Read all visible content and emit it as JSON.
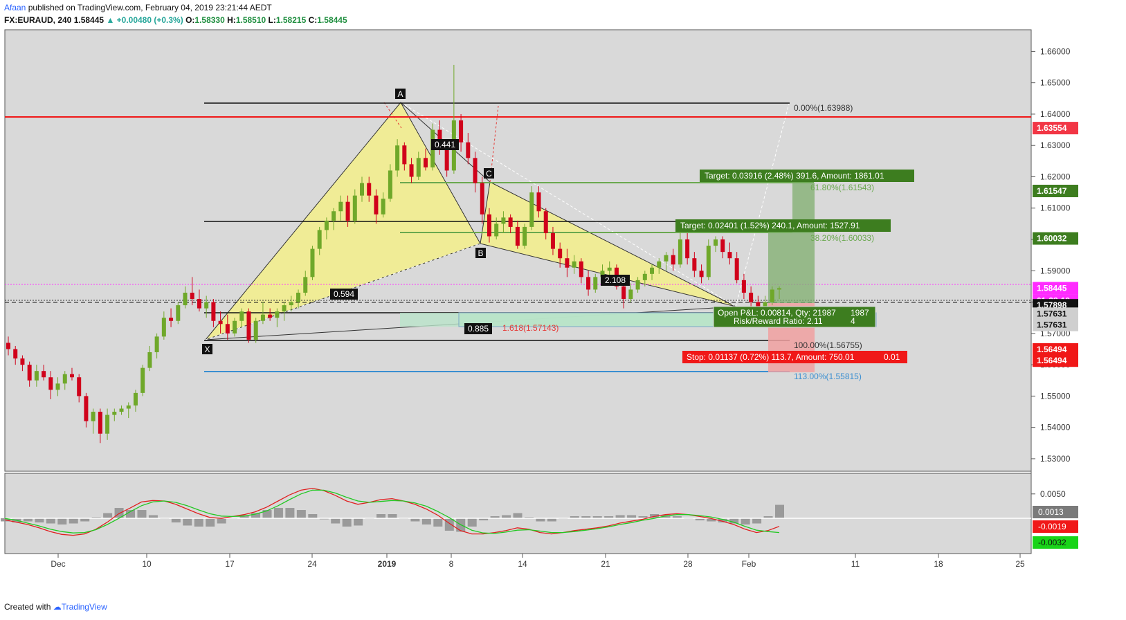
{
  "header": {
    "author": "Afaan",
    "published": "published on TradingView.com, February 04, 2019 23:21:44 AEDT",
    "symbol": "FX:EURAUD, 240",
    "last": "1.58445",
    "change": "▲ +0.00480 (+0.3%)",
    "o_label": "O:",
    "o_value": "1.58330",
    "h_label": "H:",
    "h_value": "1.58510",
    "l_label": "L:",
    "l_value": "1.58215",
    "c_label": "C:",
    "c_value": "1.58445"
  },
  "footer": {
    "created": "Created with",
    "brand": "TradingView"
  },
  "chart_data": {
    "type": "candlestick",
    "colors": {
      "up": "#6fa82a",
      "down": "#d0021b",
      "resistance": "#e91e1e",
      "harmonic_fill": "#f3ef8a",
      "target_box": "#7fae6e",
      "stop_box": "#f0a0a0",
      "fib_green": "#6aa84f",
      "fib_blue": "#3a8fd1"
    },
    "x_ticks": [
      "Dec",
      "10",
      "17",
      "24",
      "2019",
      "8",
      "14",
      "21",
      "28",
      "Feb",
      "11",
      "18",
      "25"
    ],
    "y_ticks": [
      "1.66000",
      "1.65000",
      "1.64000",
      "1.63000",
      "1.62000",
      "1.61000",
      "1.60000",
      "1.59000",
      "1.58000",
      "1.57000",
      "1.56000",
      "1.55000",
      "1.54000",
      "1.53000"
    ],
    "ylim": [
      1.528,
      1.6645
    ],
    "candles": [
      [
        1.567,
        1.569,
        1.563,
        1.565
      ],
      [
        1.565,
        1.566,
        1.56,
        1.562
      ],
      [
        1.562,
        1.563,
        1.558,
        1.56
      ],
      [
        1.56,
        1.561,
        1.553,
        1.555
      ],
      [
        1.555,
        1.56,
        1.553,
        1.558
      ],
      [
        1.558,
        1.56,
        1.555,
        1.556
      ],
      [
        1.556,
        1.558,
        1.549,
        1.552
      ],
      [
        1.552,
        1.556,
        1.55,
        1.554
      ],
      [
        1.554,
        1.558,
        1.552,
        1.557
      ],
      [
        1.557,
        1.559,
        1.555,
        1.556
      ],
      [
        1.556,
        1.557,
        1.548,
        1.55
      ],
      [
        1.55,
        1.551,
        1.54,
        1.542
      ],
      [
        1.542,
        1.546,
        1.538,
        1.545
      ],
      [
        1.545,
        1.546,
        1.535,
        1.538
      ],
      [
        1.538,
        1.546,
        1.536,
        1.544
      ],
      [
        1.544,
        1.546,
        1.542,
        1.545
      ],
      [
        1.545,
        1.547,
        1.544,
        1.546
      ],
      [
        1.546,
        1.548,
        1.543,
        1.547
      ],
      [
        1.547,
        1.552,
        1.545,
        1.551
      ],
      [
        1.551,
        1.56,
        1.55,
        1.559
      ],
      [
        1.559,
        1.566,
        1.558,
        1.564
      ],
      [
        1.564,
        1.57,
        1.562,
        1.569
      ],
      [
        1.569,
        1.577,
        1.568,
        1.575
      ],
      [
        1.575,
        1.578,
        1.572,
        1.574
      ],
      [
        1.574,
        1.58,
        1.573,
        1.579
      ],
      [
        1.579,
        1.585,
        1.578,
        1.583
      ],
      [
        1.583,
        1.588,
        1.579,
        1.581
      ],
      [
        1.581,
        1.584,
        1.577,
        1.578
      ],
      [
        1.578,
        1.582,
        1.575,
        1.58
      ],
      [
        1.58,
        1.581,
        1.572,
        1.574
      ],
      [
        1.574,
        1.577,
        1.57,
        1.573
      ],
      [
        1.573,
        1.576,
        1.568,
        1.57
      ],
      [
        1.57,
        1.575,
        1.569,
        1.574
      ],
      [
        1.574,
        1.578,
        1.572,
        1.577
      ],
      [
        1.577,
        1.578,
        1.567,
        1.568
      ],
      [
        1.568,
        1.575,
        1.567,
        1.574
      ],
      [
        1.574,
        1.58,
        1.573,
        1.576
      ],
      [
        1.576,
        1.578,
        1.574,
        1.575
      ],
      [
        1.575,
        1.578,
        1.572,
        1.577
      ],
      [
        1.577,
        1.58,
        1.574,
        1.579
      ],
      [
        1.579,
        1.582,
        1.577,
        1.58
      ],
      [
        1.58,
        1.584,
        1.578,
        1.583
      ],
      [
        1.583,
        1.59,
        1.582,
        1.588
      ],
      [
        1.588,
        1.598,
        1.587,
        1.597
      ],
      [
        1.597,
        1.604,
        1.595,
        1.603
      ],
      [
        1.603,
        1.607,
        1.6,
        1.606
      ],
      [
        1.606,
        1.61,
        1.603,
        1.609
      ],
      [
        1.609,
        1.614,
        1.606,
        1.612
      ],
      [
        1.612,
        1.614,
        1.604,
        1.606
      ],
      [
        1.606,
        1.616,
        1.605,
        1.614
      ],
      [
        1.614,
        1.62,
        1.612,
        1.618
      ],
      [
        1.618,
        1.62,
        1.612,
        1.614
      ],
      [
        1.614,
        1.616,
        1.605,
        1.608
      ],
      [
        1.608,
        1.615,
        1.607,
        1.613
      ],
      [
        1.613,
        1.624,
        1.612,
        1.622
      ],
      [
        1.622,
        1.632,
        1.62,
        1.63
      ],
      [
        1.63,
        1.631,
        1.622,
        1.624
      ],
      [
        1.624,
        1.626,
        1.618,
        1.62
      ],
      [
        1.62,
        1.628,
        1.619,
        1.626
      ],
      [
        1.626,
        1.629,
        1.622,
        1.623
      ],
      [
        1.623,
        1.637,
        1.622,
        1.635
      ],
      [
        1.635,
        1.638,
        1.627,
        1.629
      ],
      [
        1.629,
        1.631,
        1.62,
        1.622
      ],
      [
        1.622,
        1.6557,
        1.621,
        1.638
      ],
      [
        1.638,
        1.64,
        1.628,
        1.631
      ],
      [
        1.631,
        1.634,
        1.624,
        1.626
      ],
      [
        1.626,
        1.628,
        1.615,
        1.618
      ],
      [
        1.618,
        1.62,
        1.605,
        1.608
      ],
      [
        1.608,
        1.61,
        1.599,
        1.601
      ],
      [
        1.601,
        1.607,
        1.6,
        1.605
      ],
      [
        1.605,
        1.609,
        1.602,
        1.607
      ],
      [
        1.607,
        1.608,
        1.602,
        1.604
      ],
      [
        1.604,
        1.606,
        1.597,
        1.598
      ],
      [
        1.598,
        1.605,
        1.597,
        1.604
      ],
      [
        1.604,
        1.617,
        1.603,
        1.615
      ],
      [
        1.615,
        1.617,
        1.607,
        1.609
      ],
      [
        1.609,
        1.61,
        1.6,
        1.602
      ],
      [
        1.602,
        1.604,
        1.595,
        1.597
      ],
      [
        1.597,
        1.599,
        1.591,
        1.594
      ],
      [
        1.594,
        1.597,
        1.588,
        1.591
      ],
      [
        1.591,
        1.595,
        1.589,
        1.593
      ],
      [
        1.593,
        1.594,
        1.586,
        1.588
      ],
      [
        1.588,
        1.59,
        1.582,
        1.584
      ],
      [
        1.584,
        1.589,
        1.583,
        1.588
      ],
      [
        1.588,
        1.592,
        1.587,
        1.59
      ],
      [
        1.59,
        1.593,
        1.588,
        1.591
      ],
      [
        1.591,
        1.592,
        1.584,
        1.585
      ],
      [
        1.585,
        1.587,
        1.578,
        1.581
      ],
      [
        1.581,
        1.586,
        1.58,
        1.584
      ],
      [
        1.584,
        1.588,
        1.583,
        1.587
      ],
      [
        1.587,
        1.59,
        1.585,
        1.589
      ],
      [
        1.589,
        1.592,
        1.587,
        1.591
      ],
      [
        1.591,
        1.594,
        1.589,
        1.593
      ],
      [
        1.593,
        1.596,
        1.59,
        1.595
      ],
      [
        1.595,
        1.597,
        1.59,
        1.592
      ],
      [
        1.592,
        1.603,
        1.591,
        1.6
      ],
      [
        1.6,
        1.602,
        1.592,
        1.594
      ],
      [
        1.594,
        1.596,
        1.588,
        1.59
      ],
      [
        1.59,
        1.592,
        1.586,
        1.588
      ],
      [
        1.588,
        1.6,
        1.587,
        1.598
      ],
      [
        1.598,
        1.601,
        1.596,
        1.6
      ],
      [
        1.6,
        1.601,
        1.594,
        1.596
      ],
      [
        1.596,
        1.599,
        1.592,
        1.594
      ],
      [
        1.594,
        1.596,
        1.586,
        1.587
      ],
      [
        1.587,
        1.589,
        1.581,
        1.583
      ],
      [
        1.583,
        1.585,
        1.578,
        1.58
      ],
      [
        1.58,
        1.582,
        1.577,
        1.578
      ],
      [
        1.578,
        1.582,
        1.577,
        1.58
      ],
      [
        1.58,
        1.585,
        1.579,
        1.584
      ],
      [
        1.584,
        1.585,
        1.581,
        1.58445
      ]
    ],
    "macd": {
      "macd": [
        -0.0005,
        -0.001,
        -0.0015,
        -0.0022,
        -0.003,
        -0.0036,
        -0.0038,
        -0.0035,
        -0.0025,
        -0.001,
        0.0008,
        0.002,
        0.0033,
        0.0036,
        0.0035,
        0.0028,
        0.0018,
        0.0008,
        0.0,
        -0.0002,
        0.0002,
        0.0006,
        0.0012,
        0.0022,
        0.0035,
        0.0048,
        0.0058,
        0.0062,
        0.0057,
        0.0047,
        0.0035,
        0.0028,
        0.0032,
        0.0038,
        0.004,
        0.0035,
        0.0028,
        0.0018,
        0.0005,
        -0.0012,
        -0.0028,
        -0.0035,
        -0.0035,
        -0.0032,
        -0.0028,
        -0.0022,
        -0.0025,
        -0.0032,
        -0.0035,
        -0.0032,
        -0.0028,
        -0.0025,
        -0.0022,
        -0.0018,
        -0.0012,
        -0.0008,
        -0.0004,
        0.0002,
        0.0006,
        0.0008,
        0.0006,
        0.0002,
        -0.0002,
        -0.0008,
        -0.0015,
        -0.0025,
        -0.0032,
        -0.0028,
        -0.0019
      ],
      "signal": [
        -0.0002,
        -0.0006,
        -0.0012,
        -0.0018,
        -0.0025,
        -0.003,
        -0.0033,
        -0.0032,
        -0.0026,
        -0.0015,
        -0.0002,
        0.0012,
        0.0025,
        0.0033,
        0.0035,
        0.0032,
        0.0025,
        0.0016,
        0.0008,
        0.0003,
        0.0002,
        0.0003,
        0.0007,
        0.0014,
        0.0025,
        0.0038,
        0.005,
        0.0058,
        0.0058,
        0.0052,
        0.0043,
        0.0035,
        0.0032,
        0.0034,
        0.0036,
        0.0035,
        0.0031,
        0.0024,
        0.0013,
        0.0,
        -0.0015,
        -0.0027,
        -0.0033,
        -0.0034,
        -0.0031,
        -0.0027,
        -0.0026,
        -0.0029,
        -0.0032,
        -0.0032,
        -0.003,
        -0.0027,
        -0.0024,
        -0.002,
        -0.0015,
        -0.0011,
        -0.0006,
        -0.0002,
        0.0003,
        0.0006,
        0.0006,
        0.0004,
        0.0001,
        -0.0004,
        -0.001,
        -0.0019,
        -0.0027,
        -0.003,
        -0.0032
      ],
      "ylim": [
        -0.0065,
        0.0085
      ],
      "y_ticks": [
        "0.0050"
      ]
    }
  },
  "annotations": {
    "points": {
      "x": "X",
      "a": "A",
      "b": "B",
      "c": "C"
    },
    "ratios": {
      "xab": "0.594",
      "abc": "0.441",
      "bcd": "2.108",
      "xad": "0.885"
    },
    "fib_100": "100.00%(1.56755)",
    "fib_0": "0.00%(1.63988)",
    "fib_113": "113.00%(1.55815)",
    "fib_618": "61.80%(1.61543)",
    "fib_382": "38.20%(1.60033)",
    "fib_1618": "1.618(1.57143)",
    "target1": "Target: 0.03916 (2.48%) 391.6, Amount: 1861.01",
    "target2": "Target: 0.02401 (1.52%) 240.1, Amount: 1527.91",
    "open_pl": "Open P&L: 0.00814, Qty: 21987",
    "open_pl_tail": "1987",
    "risk_reward": "Risk/Reward Ratio: 2.11",
    "rr_tail": "4",
    "stop": "Stop: 0.01137 (0.72%) 113.7, Amount: 750.01",
    "stop_tail": "0.01"
  },
  "price_tags": [
    {
      "label": "1.63554",
      "price": 1.63554,
      "bg": "#f23645",
      "fg": "#ffffff"
    },
    {
      "label": "1.61547",
      "price": 1.61547,
      "bg": "#3d7d1f",
      "fg": "#ffffff"
    },
    {
      "label": "1.60032",
      "price": 1.60032,
      "bg": "#3d7d1f",
      "fg": "#ffffff"
    },
    {
      "label": "1.58445",
      "price": 1.58445,
      "bg": "#ff2bff",
      "fg": "#ffffff"
    },
    {
      "label": "01:38:19",
      "price": 1.5805,
      "bg": "#ff2bff",
      "fg": "#ffffff"
    },
    {
      "label": "1.57898",
      "price": 1.57898,
      "bg": "#111111",
      "fg": "#ffffff"
    },
    {
      "label": "1.57631",
      "price": 1.5763,
      "bg": "#cfcfcf",
      "fg": "#111111"
    },
    {
      "label": "1.57631",
      "price": 1.5727,
      "bg": "#cfcfcf",
      "fg": "#111111"
    },
    {
      "label": "1.56494",
      "price": 1.5649,
      "bg": "#f01818",
      "fg": "#ffffff"
    },
    {
      "label": "1.56494",
      "price": 1.5613,
      "bg": "#f01818",
      "fg": "#ffffff"
    }
  ],
  "macd_tags": [
    {
      "label": "0.0013",
      "bg": "#7a7a7a",
      "fg": "#ffffff"
    },
    {
      "label": "-0.0019",
      "bg": "#f01818",
      "fg": "#ffffff"
    },
    {
      "label": "-0.0032",
      "bg": "#19d419",
      "fg": "#111111"
    }
  ]
}
